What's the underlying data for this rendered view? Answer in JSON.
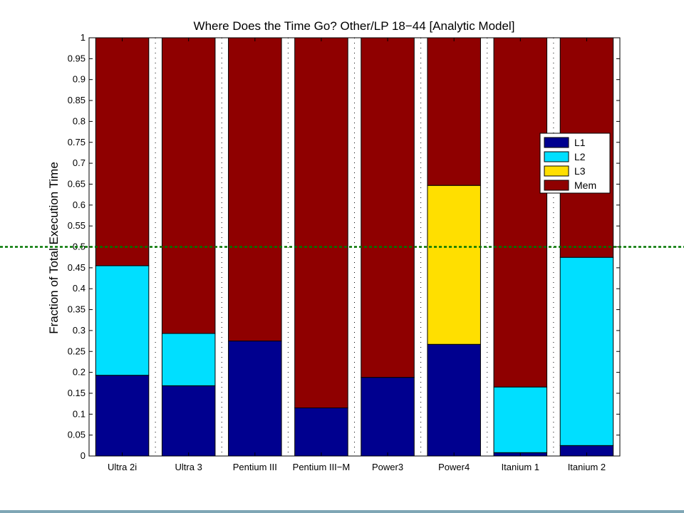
{
  "chart_data": {
    "type": "bar",
    "stacked": true,
    "title": "Where Does the Time Go? Other/LP 18−44 [Analytic Model]",
    "xlabel": "",
    "ylabel": "Fraction of Total Execution Time",
    "ylim": [
      0,
      1
    ],
    "yticks": [
      "0",
      "0.05",
      "0.1",
      "0.15",
      "0.2",
      "0.25",
      "0.3",
      "0.35",
      "0.4",
      "0.45",
      "0.5",
      "0.55",
      "0.6",
      "0.65",
      "0.7",
      "0.75",
      "0.8",
      "0.85",
      "0.9",
      "0.95",
      "1"
    ],
    "categories": [
      "Ultra 2i",
      "Ultra 3",
      "Pentium III",
      "Pentium III−M",
      "Power3",
      "Power4",
      "Itanium 1",
      "Itanium 2"
    ],
    "series": [
      {
        "name": "L1",
        "color": "#00008f",
        "values": [
          0.193,
          0.168,
          0.275,
          0.115,
          0.188,
          0.267,
          0.008,
          0.025
        ]
      },
      {
        "name": "L2",
        "color": "#00dfff",
        "values": [
          0.262,
          0.125,
          0.0,
          0.0,
          0.0,
          0.0,
          0.157,
          0.45
        ]
      },
      {
        "name": "L3",
        "color": "#ffdf00",
        "values": [
          0.0,
          0.0,
          0.0,
          0.0,
          0.0,
          0.38,
          0.0,
          0.0
        ]
      },
      {
        "name": "Mem",
        "color": "#8f0000",
        "values": [
          0.545,
          0.707,
          0.725,
          0.885,
          0.812,
          0.353,
          0.835,
          0.525
        ]
      }
    ],
    "grid": "vertical dotted",
    "legend_position": "right",
    "reference_line": {
      "y": 0.5,
      "color": "#007700",
      "style": "dotted"
    }
  }
}
